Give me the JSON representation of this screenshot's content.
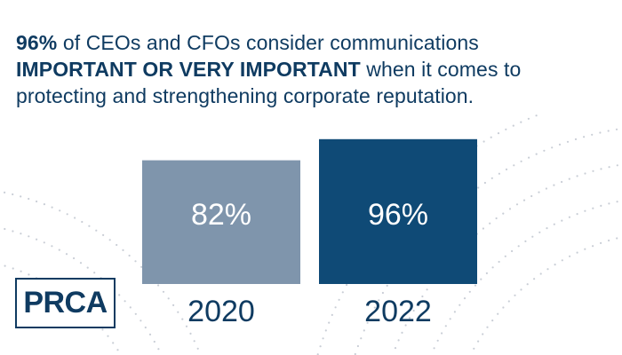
{
  "headline": {
    "part1_bold": "96%",
    "part2": " of CEOs and CFOs consider communications",
    "part3_bold": "IMPORTANT OR VERY IMPORTANT",
    "part4": " when it comes to protecting and strengthening corporate reputation."
  },
  "logo": {
    "text": "PRCA"
  },
  "colors": {
    "navy": "#0f3b61",
    "bar_2020": "#7f95ac",
    "bar_2022": "#0f4a76",
    "dots": "#c9ced6"
  },
  "chart_data": {
    "type": "bar",
    "categories": [
      "2020",
      "2022"
    ],
    "values": [
      82,
      96
    ],
    "value_labels": [
      "82%",
      "96%"
    ],
    "ylim": [
      0,
      100
    ],
    "grid": false
  }
}
